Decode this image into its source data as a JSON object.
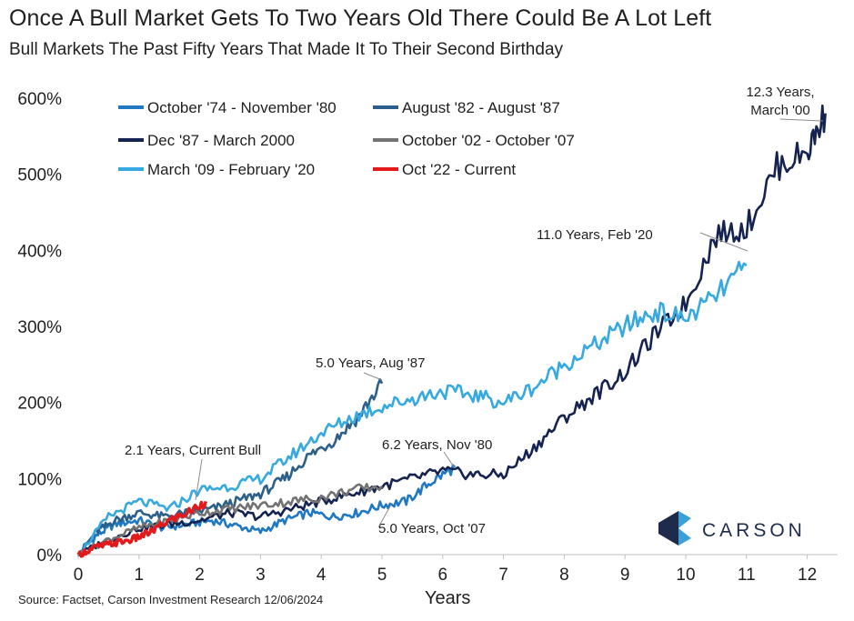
{
  "header": {
    "title": "Once A Bull Market Gets To Two Years Old There Could Be A Lot Left",
    "subtitle": "Bull Markets The Past Fifty Years That Made It To Their Second Birthday"
  },
  "footer": {
    "source": "Source: Factset, Carson Investment Research 12/06/2024"
  },
  "logo": {
    "text": "CARSON",
    "icon": "carson-chevron-logo",
    "colors": [
      "#1e2b4a",
      "#3aa0d8"
    ]
  },
  "chart_data": {
    "type": "line",
    "title": "Once A Bull Market Gets To Two Years Old There Could Be A Lot Left",
    "subtitle": "Bull Markets The Past Fifty Years That Made It To Their Second Birthday",
    "xlabel": "Years",
    "ylabel": "",
    "xlim": [
      0,
      12.5
    ],
    "ylim": [
      0,
      600
    ],
    "x_ticks": [
      "0",
      "1",
      "2",
      "3",
      "4",
      "5",
      "6",
      "7",
      "8",
      "9",
      "10",
      "11",
      "12"
    ],
    "y_ticks": [
      "0%",
      "100%",
      "200%",
      "300%",
      "400%",
      "500%",
      "600%"
    ],
    "grid": false,
    "legend_position": "top-left",
    "series": [
      {
        "name": "October '74 - November '80",
        "color": "#1f78c1",
        "x": [
          0,
          0.3,
          0.6,
          1.0,
          1.4,
          1.8,
          2.2,
          2.6,
          3.0,
          3.4,
          3.8,
          4.2,
          4.6,
          5.0,
          5.4,
          5.8,
          6.2
        ],
        "y": [
          0,
          25,
          40,
          45,
          35,
          40,
          45,
          38,
          30,
          45,
          55,
          50,
          55,
          65,
          70,
          95,
          115
        ]
      },
      {
        "name": "August '82 - August '87",
        "color": "#2c5f8a",
        "x": [
          0,
          0.3,
          0.6,
          1.0,
          1.4,
          1.8,
          2.2,
          2.6,
          3.0,
          3.4,
          3.8,
          4.2,
          4.6,
          5.0
        ],
        "y": [
          0,
          30,
          45,
          55,
          50,
          55,
          60,
          70,
          80,
          100,
          130,
          150,
          180,
          225
        ]
      },
      {
        "name": "Dec '87 - March 2000",
        "color": "#14234f",
        "x": [
          0,
          0.5,
          1.0,
          1.5,
          2.0,
          2.5,
          3.0,
          3.5,
          4.0,
          4.5,
          5.0,
          5.5,
          6.0,
          6.5,
          7.0,
          7.5,
          8.0,
          8.5,
          9.0,
          9.5,
          10.0,
          10.5,
          11.0,
          11.5,
          12.0,
          12.3
        ],
        "y": [
          0,
          20,
          35,
          40,
          45,
          55,
          50,
          60,
          70,
          80,
          90,
          100,
          110,
          105,
          105,
          140,
          180,
          210,
          240,
          290,
          330,
          420,
          430,
          510,
          530,
          580
        ]
      },
      {
        "name": "October '02 - October '07",
        "color": "#737373",
        "x": [
          0,
          0.5,
          1.0,
          1.5,
          2.0,
          2.5,
          3.0,
          3.5,
          4.0,
          4.5,
          5.0
        ],
        "y": [
          0,
          20,
          35,
          45,
          55,
          60,
          65,
          70,
          75,
          85,
          90
        ]
      },
      {
        "name": "March '09 - February '20",
        "color": "#36a9e1",
        "x": [
          0,
          0.5,
          1.0,
          1.5,
          2.0,
          2.5,
          3.0,
          3.5,
          4.0,
          4.5,
          5.0,
          5.5,
          6.0,
          6.5,
          7.0,
          7.5,
          8.0,
          8.5,
          9.0,
          9.5,
          10.0,
          10.5,
          11.0
        ],
        "y": [
          0,
          50,
          70,
          60,
          85,
          90,
          100,
          130,
          160,
          180,
          195,
          205,
          215,
          210,
          200,
          220,
          250,
          275,
          300,
          320,
          310,
          340,
          380
        ]
      },
      {
        "name": "Oct '22 - Current",
        "color": "#e31a1c",
        "x": [
          0,
          0.3,
          0.6,
          0.9,
          1.2,
          1.5,
          1.8,
          2.1
        ],
        "y": [
          0,
          10,
          15,
          20,
          30,
          45,
          55,
          70
        ]
      }
    ],
    "annotations": [
      {
        "text": "12.3 Years,",
        "text2": "March '00"
      },
      {
        "text": "11.0 Years, Feb '20"
      },
      {
        "text": "5.0 Years, Aug '87"
      },
      {
        "text": "6.2 Years, Nov '80"
      },
      {
        "text": "2.1 Years, Current Bull"
      },
      {
        "text": "5.0 Years, Oct '07"
      }
    ]
  }
}
